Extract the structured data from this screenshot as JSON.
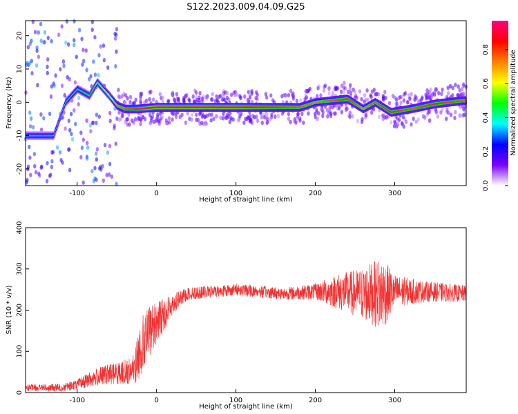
{
  "figure": {
    "title": "S122.2023.009.04.09.G25"
  },
  "chart_data": [
    {
      "type": "heatmap",
      "xlabel": "Height of straight line (km)",
      "ylabel": "Frequency (Hz)",
      "xlim": [
        -165,
        390
      ],
      "ylim": [
        -25,
        24.5
      ],
      "xticks": [
        -100,
        0,
        100,
        200,
        300
      ],
      "yticks": [
        -20,
        -10,
        0,
        10,
        20
      ],
      "colorbar": {
        "label": "Normalized spectral amplitude",
        "range": [
          0,
          0.97
        ],
        "ticks": [
          "0.0",
          "0.2",
          "0.4",
          "0.6",
          "0.8"
        ],
        "tick_values": [
          0,
          0.2,
          0.4,
          0.6,
          0.8
        ],
        "colors": [
          "#ffffff",
          "#7a00ff",
          "#0000ff",
          "#00ffff",
          "#00ff00",
          "#ffff00",
          "#ff7f00",
          "#ff0000",
          "#ff0080"
        ]
      },
      "ridge": [
        {
          "x": -130,
          "y": -10,
          "amp": 0.35
        },
        {
          "x": -115,
          "y": 0,
          "amp": 0.4
        },
        {
          "x": -100,
          "y": 4,
          "amp": 0.45
        },
        {
          "x": -85,
          "y": 2,
          "amp": 0.5
        },
        {
          "x": -75,
          "y": 6,
          "amp": 0.55
        },
        {
          "x": -60,
          "y": 2,
          "amp": 0.6
        },
        {
          "x": -50,
          "y": -1,
          "amp": 0.75
        },
        {
          "x": -40,
          "y": -2,
          "amp": 0.8
        },
        {
          "x": -25,
          "y": -2,
          "amp": 0.85
        },
        {
          "x": 0,
          "y": -1.5,
          "amp": 0.9
        },
        {
          "x": 100,
          "y": -1.5,
          "amp": 0.9
        },
        {
          "x": 140,
          "y": -1.5,
          "amp": 0.85
        },
        {
          "x": 180,
          "y": -1.5,
          "amp": 0.8
        },
        {
          "x": 200,
          "y": 0,
          "amp": 0.75
        },
        {
          "x": 220,
          "y": 0.5,
          "amp": 0.8
        },
        {
          "x": 240,
          "y": 1,
          "amp": 0.85
        },
        {
          "x": 260,
          "y": -2,
          "amp": 0.75
        },
        {
          "x": 275,
          "y": 0,
          "amp": 0.8
        },
        {
          "x": 295,
          "y": -3,
          "amp": 0.85
        },
        {
          "x": 320,
          "y": -2,
          "amp": 0.8
        },
        {
          "x": 350,
          "y": -0.5,
          "amp": 0.85
        },
        {
          "x": 385,
          "y": 0.5,
          "amp": 0.8
        }
      ]
    },
    {
      "type": "line",
      "xlabel": "Height of straight line (km)",
      "ylabel": "SNR (10 * v/v)",
      "xlim": [
        -165,
        390
      ],
      "ylim": [
        0,
        400
      ],
      "xticks": [
        -100,
        0,
        100,
        200,
        300
      ],
      "yticks": [
        0,
        100,
        200,
        300,
        400
      ],
      "color": "#f03232",
      "envelope": [
        {
          "x": -165,
          "mean": 12,
          "spread": 8
        },
        {
          "x": -120,
          "mean": 12,
          "spread": 10
        },
        {
          "x": -100,
          "mean": 20,
          "spread": 12
        },
        {
          "x": -80,
          "mean": 35,
          "spread": 20
        },
        {
          "x": -60,
          "mean": 45,
          "spread": 25
        },
        {
          "x": -40,
          "mean": 50,
          "spread": 30
        },
        {
          "x": -28,
          "mean": 55,
          "spread": 40
        },
        {
          "x": -20,
          "mean": 110,
          "spread": 70
        },
        {
          "x": -5,
          "mean": 160,
          "spread": 60
        },
        {
          "x": 10,
          "mean": 190,
          "spread": 40
        },
        {
          "x": 20,
          "mean": 215,
          "spread": 25
        },
        {
          "x": 40,
          "mean": 240,
          "spread": 15
        },
        {
          "x": 100,
          "mean": 250,
          "spread": 15
        },
        {
          "x": 160,
          "mean": 240,
          "spread": 15
        },
        {
          "x": 200,
          "mean": 245,
          "spread": 20
        },
        {
          "x": 230,
          "mean": 245,
          "spread": 45
        },
        {
          "x": 255,
          "mean": 240,
          "spread": 60
        },
        {
          "x": 285,
          "mean": 240,
          "spread": 90
        },
        {
          "x": 300,
          "mean": 245,
          "spread": 40
        },
        {
          "x": 340,
          "mean": 245,
          "spread": 25
        },
        {
          "x": 390,
          "mean": 240,
          "spread": 20
        }
      ]
    }
  ]
}
